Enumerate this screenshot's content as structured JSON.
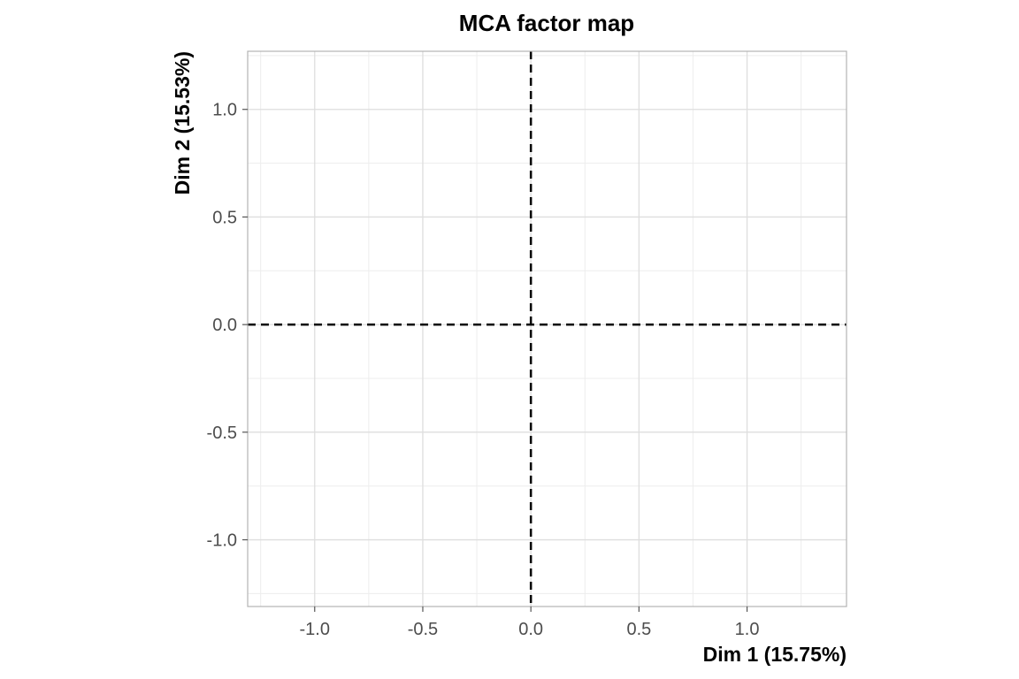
{
  "chart_data": {
    "type": "scatter",
    "title": "MCA factor map",
    "xlabel": "Dim 1 (15.75%)",
    "ylabel": "Dim 2 (15.53%)",
    "xlim": [
      -1.31,
      1.46
    ],
    "ylim": [
      -1.31,
      1.27
    ],
    "x_ticks": [
      -1.0,
      -0.5,
      0.0,
      0.5,
      1.0
    ],
    "x_tick_labels": [
      "-1.0",
      "-0.5",
      "0.0",
      "0.5",
      "1.0"
    ],
    "y_ticks": [
      -1.0,
      -0.5,
      0.0,
      0.5,
      1.0
    ],
    "y_tick_labels": [
      "-1.0",
      "-0.5",
      "0.0",
      "0.5",
      "1.0"
    ],
    "x_minor_ticks": [
      -1.25,
      -0.75,
      -0.25,
      0.25,
      0.75,
      1.25
    ],
    "y_minor_ticks": [
      -1.25,
      -0.75,
      -0.25,
      0.25,
      0.75,
      1.25
    ],
    "reference_lines": [
      {
        "axis": "x",
        "value": 0,
        "style": "dashed"
      },
      {
        "axis": "y",
        "value": 0,
        "style": "dashed"
      }
    ],
    "points": [],
    "grid": true,
    "legend": "none",
    "colors": {
      "panel_border": "#b3b3b3",
      "major_grid": "#dedede",
      "minor_grid": "#ededed",
      "reference_line": "#000000"
    }
  }
}
